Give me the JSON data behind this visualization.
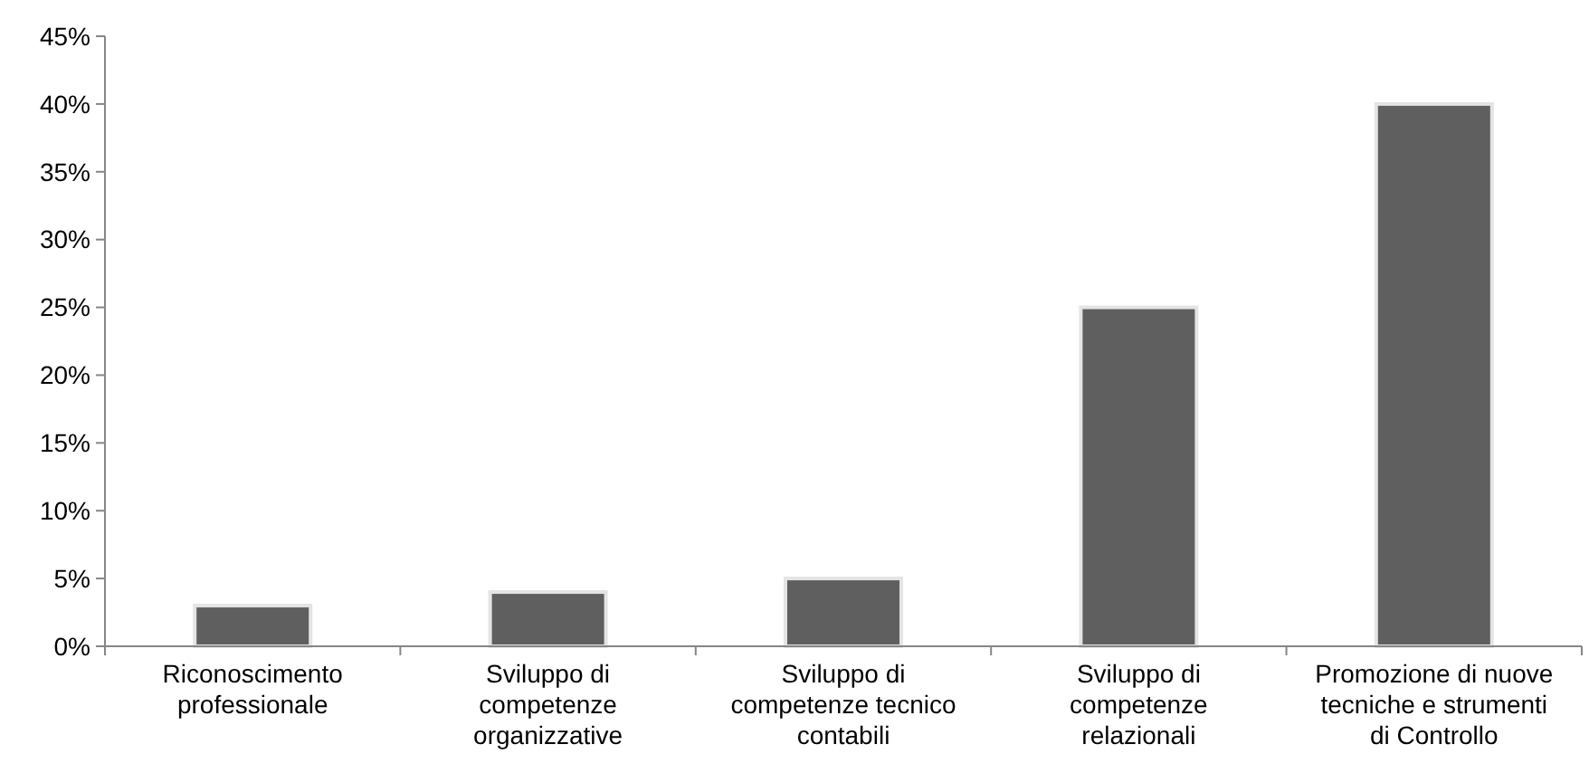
{
  "chart_data": {
    "type": "bar",
    "categories": [
      "Riconoscimento professionale",
      "Sviluppo di competenze organizzative",
      "Sviluppo di competenze tecnico contabili",
      "Sviluppo di competenze relazionali",
      "Promozione di nuove tecniche e strumenti di Controllo"
    ],
    "values": [
      3,
      4,
      5,
      25,
      40
    ],
    "color": "#5f5f5f",
    "ylim": [
      0,
      45
    ],
    "yticks": [
      {
        "value": 0,
        "label": "0%"
      },
      {
        "value": 5,
        "label": "5%"
      },
      {
        "value": 10,
        "label": "10%"
      },
      {
        "value": 15,
        "label": "15%"
      },
      {
        "value": 20,
        "label": "20%"
      },
      {
        "value": 25,
        "label": "25%"
      },
      {
        "value": 30,
        "label": "30%"
      },
      {
        "value": 35,
        "label": "35%"
      },
      {
        "value": 40,
        "label": "40%"
      },
      {
        "value": 45,
        "label": "45%"
      }
    ],
    "grid": false
  }
}
